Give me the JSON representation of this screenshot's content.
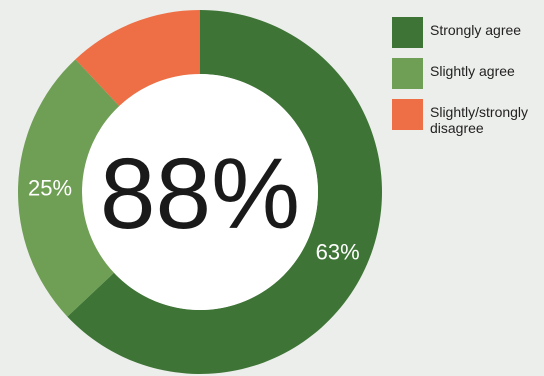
{
  "chart_data": {
    "type": "pie",
    "donut": true,
    "center_label": "88%",
    "slices": [
      {
        "name": "Strongly agree",
        "value": 63,
        "label": "63%",
        "color": "#3e7536"
      },
      {
        "name": "Slightly agree",
        "value": 25,
        "label": "25%",
        "color": "#6f9e55"
      },
      {
        "name": "Slightly/strongly\ndisagree",
        "value": 12,
        "label": "",
        "color": "#ee6e45"
      }
    ],
    "legend_position": "top-right"
  },
  "colors": {
    "background": "#eceeeb",
    "hole": "#ffffff"
  }
}
